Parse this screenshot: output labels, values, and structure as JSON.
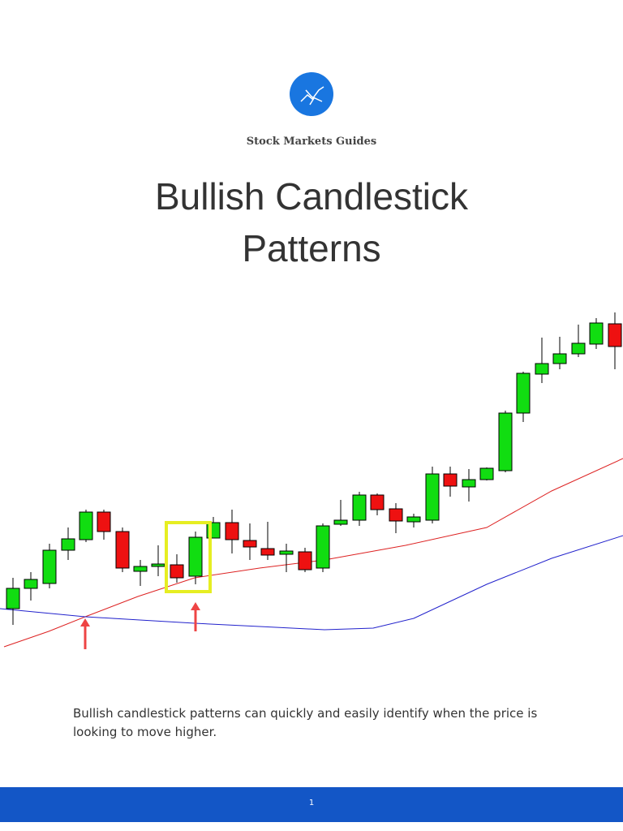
{
  "header": {
    "brand": "Stock Markets Guides",
    "title": "Bullish Candlestick Patterns"
  },
  "body": {
    "text": "Bullish candlestick patterns can quickly and easily identify when the price is looking to move higher."
  },
  "footer": {
    "page_number": "1"
  }
}
